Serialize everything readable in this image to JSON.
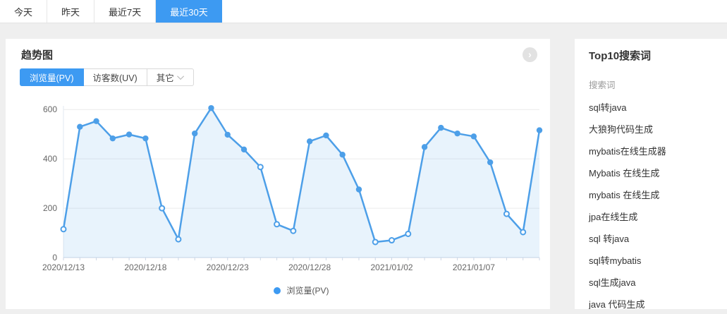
{
  "colors": {
    "accent_blue": "#3d9af2",
    "line_blue": "#4d9fe8",
    "area_fill": "rgba(77,159,232,0.13)",
    "grid_line": "#ececec",
    "axis_line": "#ccd6e5",
    "axis_text": "#666666",
    "page_bg": "#efefef"
  },
  "top_tabs": {
    "items": [
      {
        "label": "今天",
        "active": false
      },
      {
        "label": "昨天",
        "active": false
      },
      {
        "label": "最近7天",
        "active": false
      },
      {
        "label": "最近30天",
        "active": true
      }
    ]
  },
  "trend_card": {
    "title": "趋势图",
    "arrow_button_glyph": "›",
    "metric_tabs": [
      {
        "label": "浏览量(PV)",
        "active": true,
        "dropdown": false
      },
      {
        "label": "访客数(UV)",
        "active": false,
        "dropdown": false
      },
      {
        "label": "其它",
        "active": false,
        "dropdown": true
      }
    ]
  },
  "chart_data": {
    "type": "line",
    "title": "趋势图",
    "x": [
      "2020/12/13",
      "2020/12/14",
      "2020/12/15",
      "2020/12/16",
      "2020/12/17",
      "2020/12/18",
      "2020/12/19",
      "2020/12/20",
      "2020/12/21",
      "2020/12/22",
      "2020/12/23",
      "2020/12/24",
      "2020/12/25",
      "2020/12/26",
      "2020/12/27",
      "2020/12/28",
      "2020/12/29",
      "2020/12/30",
      "2020/12/31",
      "2021/01/01",
      "2021/01/02",
      "2021/01/03",
      "2021/01/04",
      "2021/01/05",
      "2021/01/06",
      "2021/01/07",
      "2021/01/08",
      "2021/01/09",
      "2021/01/10",
      "2021/01/11"
    ],
    "x_label_indices": [
      0,
      5,
      10,
      15,
      20,
      25
    ],
    "x_tick_labels": [
      "2020/12/13",
      "2020/12/18",
      "2020/12/23",
      "2020/12/28",
      "2021/01/02",
      "2021/01/07"
    ],
    "yticks": [
      0,
      200,
      400,
      600
    ],
    "ylim": [
      0,
      615
    ],
    "grid": true,
    "legend_position": "bottom",
    "series": [
      {
        "name": "浏览量(PV)",
        "values": [
          115,
          530,
          553,
          483,
          499,
          483,
          200,
          74,
          503,
          606,
          498,
          438,
          367,
          135,
          108,
          471,
          495,
          417,
          276,
          63,
          70,
          96,
          448,
          526,
          503,
          491,
          386,
          177,
          103,
          516
        ],
        "hollow_indices": [
          0,
          6,
          7,
          12,
          13,
          14,
          19,
          20,
          21,
          27,
          28
        ]
      }
    ]
  },
  "search_panel": {
    "title": "Top10搜索词",
    "column_header": "搜索词",
    "terms": [
      "sql转java",
      "大狼狗代码生成",
      "mybatis在线生成器",
      "Mybatis 在线生成",
      "mybatis 在线生成",
      "jpa在线生成",
      "sql 转java",
      "sql转mybatis",
      "sql生成java",
      "java 代码生成"
    ]
  }
}
